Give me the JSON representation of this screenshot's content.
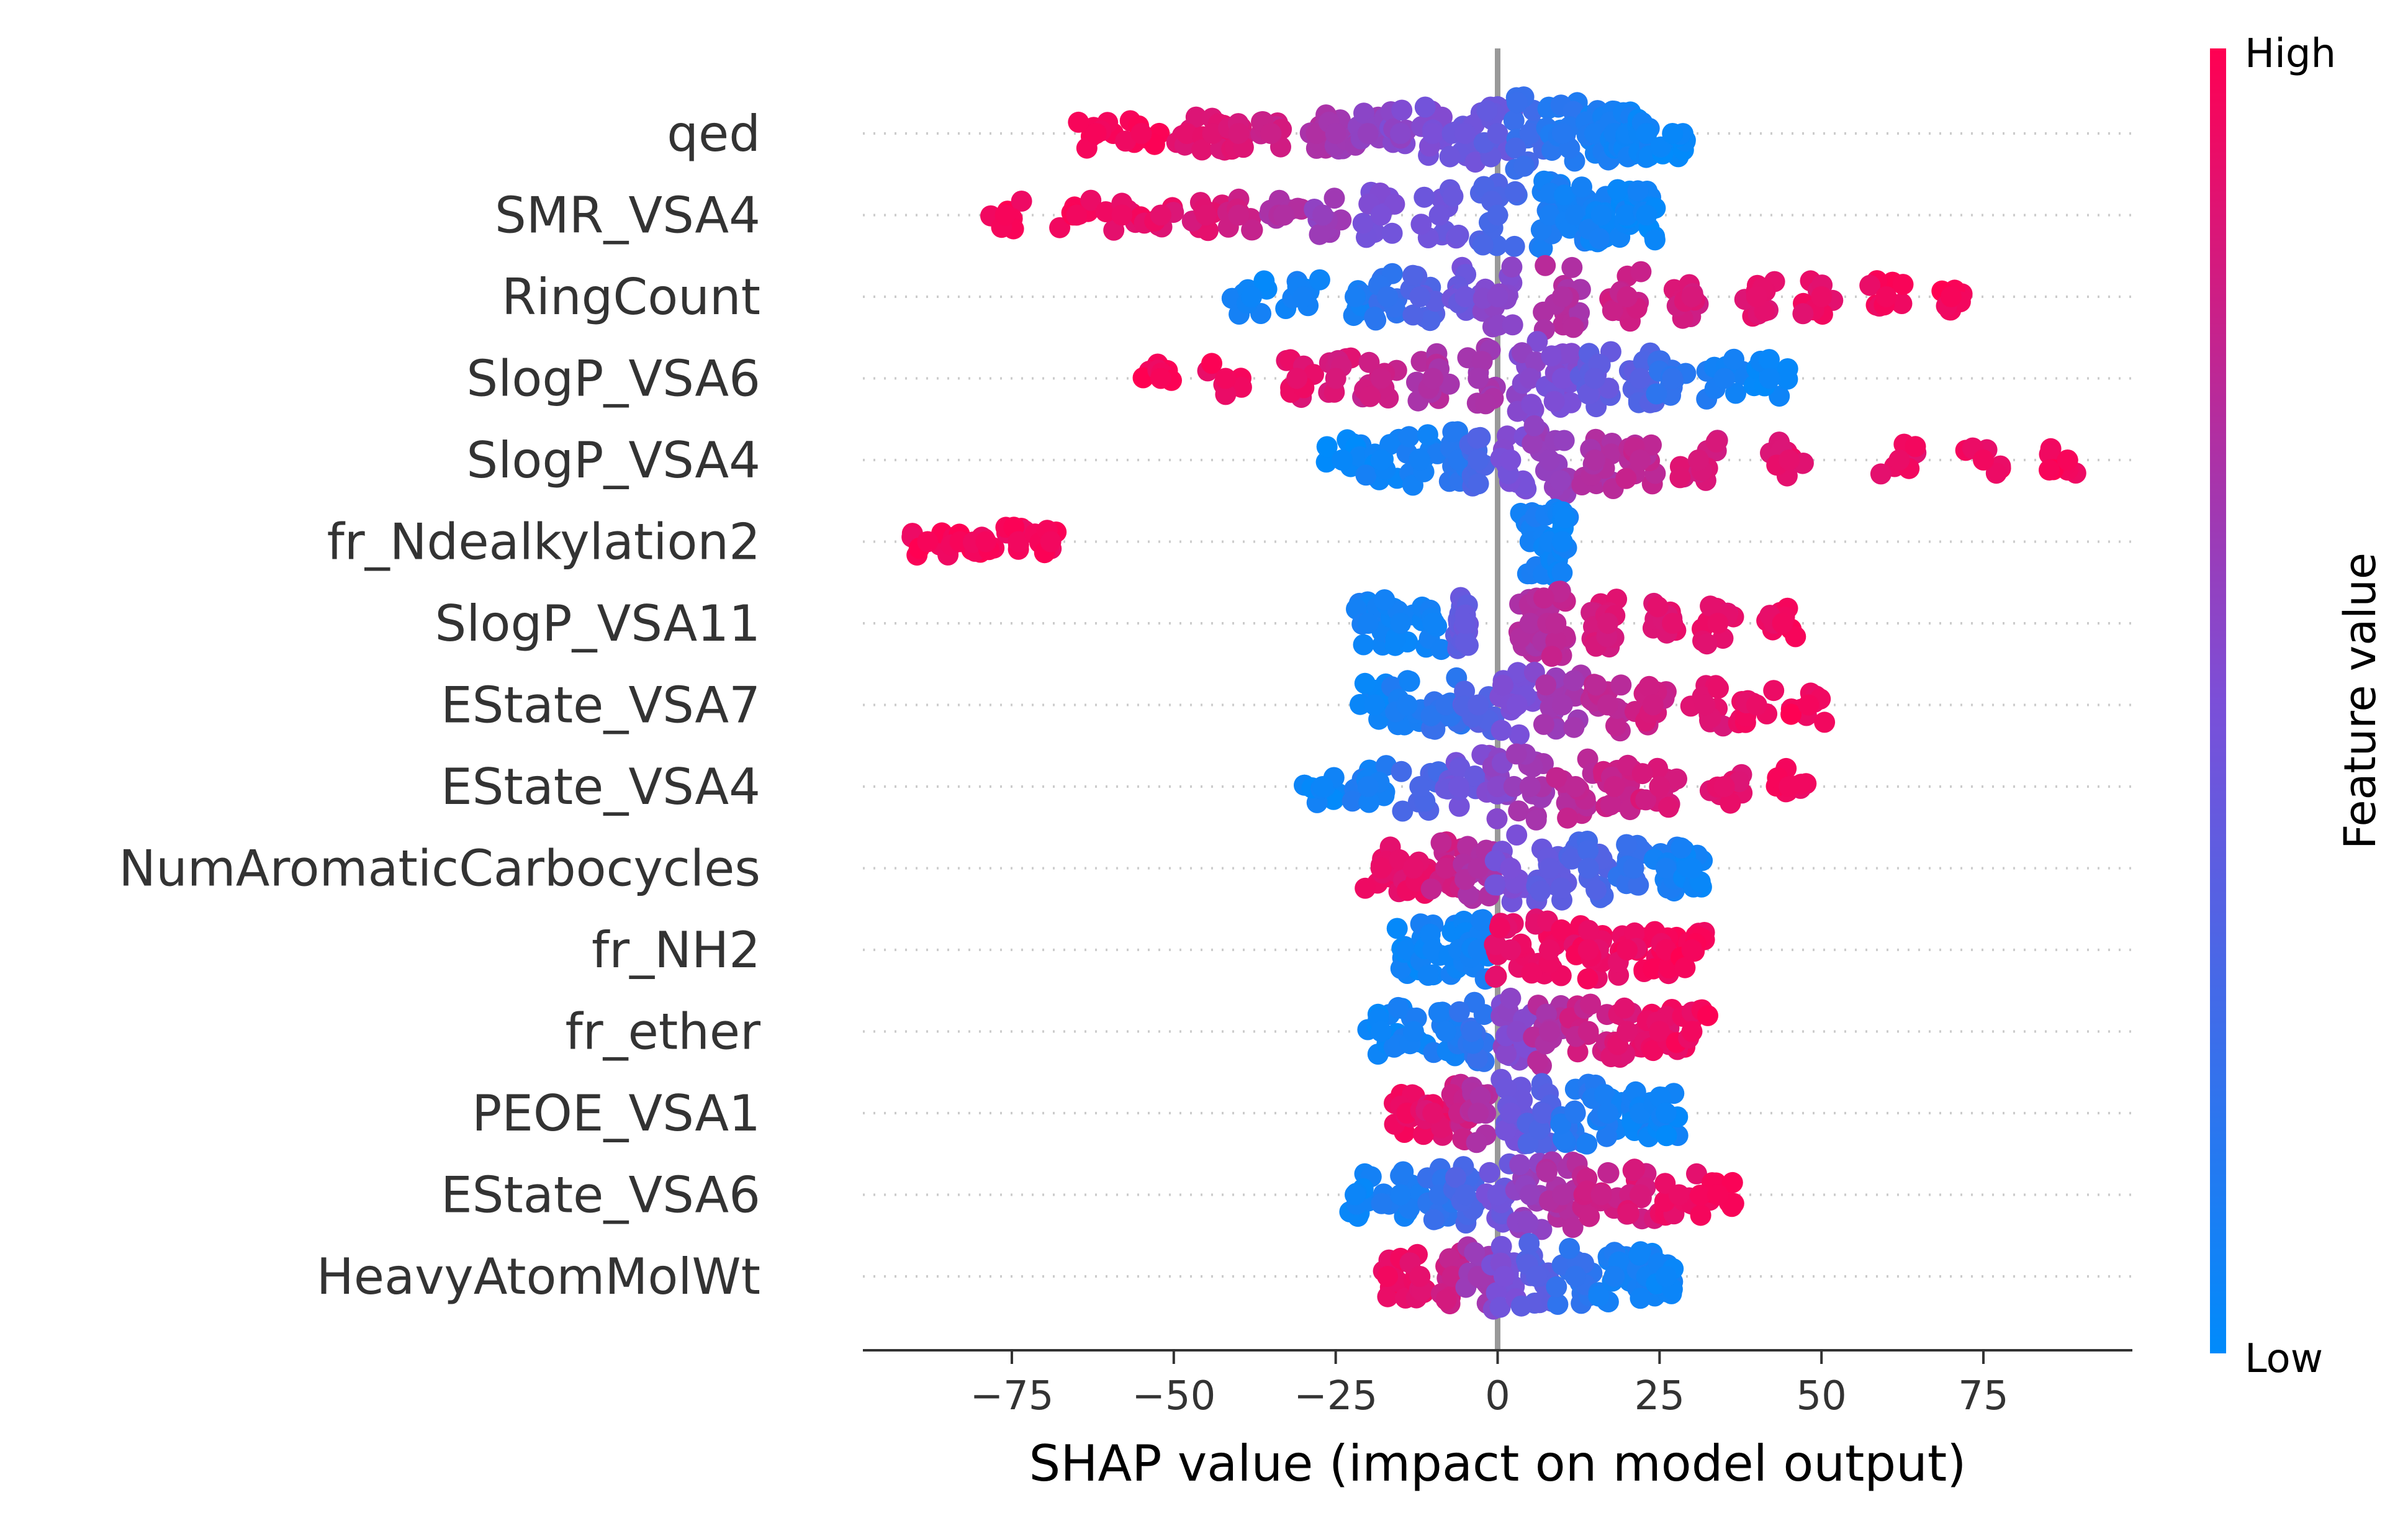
{
  "chart_data": {
    "type": "scatter",
    "subtype": "beeswarm",
    "xlabel": "SHAP value (impact on model output)",
    "ylabel": "",
    "xlim": [
      -98,
      98
    ],
    "xticks": [
      -75,
      -50,
      -25,
      0,
      25,
      50,
      75
    ],
    "xtick_labels": [
      "−75",
      "−50",
      "−25",
      "0",
      "25",
      "50",
      "75"
    ],
    "reference_line_x": 0,
    "colorbar": {
      "title": "Feature value",
      "high_label": "High",
      "low_label": "Low",
      "low_color": "#008bfb",
      "high_color": "#ff0052"
    },
    "features": [
      {
        "name": "qed",
        "points": [
          {
            "x": -62,
            "v": 0.97
          },
          {
            "x": -55,
            "v": 0.95
          },
          {
            "x": -48,
            "v": 0.9
          },
          {
            "x": -44,
            "v": 0.88
          },
          {
            "x": -40,
            "v": 0.85
          },
          {
            "x": -35,
            "v": 0.8
          },
          {
            "x": -28,
            "v": 0.7
          },
          {
            "x": -25,
            "v": 0.65
          },
          {
            "x": -20,
            "v": 0.6
          },
          {
            "x": -15,
            "v": 0.55
          },
          {
            "x": -10,
            "v": 0.5
          },
          {
            "x": -5,
            "v": 0.45
          },
          {
            "x": 0,
            "v": 0.4
          },
          {
            "x": 5,
            "v": 0.25
          },
          {
            "x": 10,
            "v": 0.15
          },
          {
            "x": 15,
            "v": 0.1
          },
          {
            "x": 18,
            "v": 0.08
          },
          {
            "x": 20,
            "v": 0.06
          },
          {
            "x": 23,
            "v": 0.05
          },
          {
            "x": 27,
            "v": 0.03
          }
        ]
      },
      {
        "name": "SMR_VSA4",
        "points": [
          {
            "x": -76,
            "v": 0.97
          },
          {
            "x": -65,
            "v": 0.95
          },
          {
            "x": -58,
            "v": 0.93
          },
          {
            "x": -52,
            "v": 0.9
          },
          {
            "x": -45,
            "v": 0.88
          },
          {
            "x": -40,
            "v": 0.8
          },
          {
            "x": -33,
            "v": 0.7
          },
          {
            "x": -27,
            "v": 0.6
          },
          {
            "x": -18,
            "v": 0.5
          },
          {
            "x": -9,
            "v": 0.45
          },
          {
            "x": 0,
            "v": 0.3
          },
          {
            "x": 8,
            "v": 0.1
          },
          {
            "x": 12,
            "v": 0.08
          },
          {
            "x": 16,
            "v": 0.06
          },
          {
            "x": 20,
            "v": 0.05
          },
          {
            "x": 23,
            "v": 0.04
          }
        ]
      },
      {
        "name": "RingCount",
        "points": [
          {
            "x": -38,
            "v": 0.05
          },
          {
            "x": -30,
            "v": 0.08
          },
          {
            "x": -22,
            "v": 0.1
          },
          {
            "x": -17,
            "v": 0.2
          },
          {
            "x": -12,
            "v": 0.35
          },
          {
            "x": -5,
            "v": 0.45
          },
          {
            "x": 0,
            "v": 0.55
          },
          {
            "x": 10,
            "v": 0.7
          },
          {
            "x": 20,
            "v": 0.8
          },
          {
            "x": 30,
            "v": 0.85
          },
          {
            "x": 40,
            "v": 0.9
          },
          {
            "x": 50,
            "v": 0.92
          },
          {
            "x": 60,
            "v": 0.95
          },
          {
            "x": 70,
            "v": 0.97
          }
        ]
      },
      {
        "name": "SlogP_VSA6",
        "points": [
          {
            "x": -52,
            "v": 0.97
          },
          {
            "x": -42,
            "v": 0.95
          },
          {
            "x": -31,
            "v": 0.9
          },
          {
            "x": -25,
            "v": 0.85
          },
          {
            "x": -18,
            "v": 0.8
          },
          {
            "x": -10,
            "v": 0.7
          },
          {
            "x": -3,
            "v": 0.65
          },
          {
            "x": 5,
            "v": 0.55
          },
          {
            "x": 10,
            "v": 0.5
          },
          {
            "x": 15,
            "v": 0.4
          },
          {
            "x": 22,
            "v": 0.35
          },
          {
            "x": 27,
            "v": 0.2
          },
          {
            "x": 35,
            "v": 0.1
          },
          {
            "x": 42,
            "v": 0.05
          }
        ]
      },
      {
        "name": "SlogP_VSA4",
        "points": [
          {
            "x": -24,
            "v": 0.03
          },
          {
            "x": -18,
            "v": 0.05
          },
          {
            "x": -12,
            "v": 0.08
          },
          {
            "x": -6,
            "v": 0.15
          },
          {
            "x": -3,
            "v": 0.3
          },
          {
            "x": 2,
            "v": 0.5
          },
          {
            "x": 8,
            "v": 0.6
          },
          {
            "x": 15,
            "v": 0.7
          },
          {
            "x": 22,
            "v": 0.75
          },
          {
            "x": 31,
            "v": 0.85
          },
          {
            "x": 45,
            "v": 0.9
          },
          {
            "x": 62,
            "v": 0.92
          },
          {
            "x": 75,
            "v": 0.95
          },
          {
            "x": 88,
            "v": 0.97
          }
        ]
      },
      {
        "name": "fr_Ndealkylation2",
        "points": [
          {
            "x": -88,
            "v": 0.97
          },
          {
            "x": -83,
            "v": 0.97
          },
          {
            "x": -79,
            "v": 0.96
          },
          {
            "x": -74,
            "v": 0.95
          },
          {
            "x": -69,
            "v": 0.95
          },
          {
            "x": 5,
            "v": 0.08
          },
          {
            "x": 8,
            "v": 0.06
          },
          {
            "x": 10,
            "v": 0.05
          }
        ]
      },
      {
        "name": "SlogP_VSA11",
        "points": [
          {
            "x": -20,
            "v": 0.08
          },
          {
            "x": -15,
            "v": 0.07
          },
          {
            "x": -10,
            "v": 0.06
          },
          {
            "x": -6,
            "v": 0.4
          },
          {
            "x": -5,
            "v": 0.42
          },
          {
            "x": 5,
            "v": 0.7
          },
          {
            "x": 9,
            "v": 0.75
          },
          {
            "x": 17,
            "v": 0.85
          },
          {
            "x": 27,
            "v": 0.9
          },
          {
            "x": 34,
            "v": 0.92
          },
          {
            "x": 44,
            "v": 0.95
          }
        ]
      },
      {
        "name": "EState_VSA7",
        "points": [
          {
            "x": -19,
            "v": 0.05
          },
          {
            "x": -14,
            "v": 0.1
          },
          {
            "x": -8,
            "v": 0.2
          },
          {
            "x": -3,
            "v": 0.35
          },
          {
            "x": 3,
            "v": 0.5
          },
          {
            "x": 10,
            "v": 0.65
          },
          {
            "x": 17,
            "v": 0.75
          },
          {
            "x": 24,
            "v": 0.82
          },
          {
            "x": 32,
            "v": 0.88
          },
          {
            "x": 40,
            "v": 0.92
          },
          {
            "x": 48,
            "v": 0.96
          }
        ]
      },
      {
        "name": "EState_VSA4",
        "points": [
          {
            "x": -27,
            "v": 0.05
          },
          {
            "x": -20,
            "v": 0.1
          },
          {
            "x": -12,
            "v": 0.3
          },
          {
            "x": -6,
            "v": 0.45
          },
          {
            "x": 0,
            "v": 0.55
          },
          {
            "x": 5,
            "v": 0.65
          },
          {
            "x": 12,
            "v": 0.75
          },
          {
            "x": 18,
            "v": 0.8
          },
          {
            "x": 25,
            "v": 0.85
          },
          {
            "x": 35,
            "v": 0.9
          },
          {
            "x": 45,
            "v": 0.95
          }
        ]
      },
      {
        "name": "NumAromaticCarbocycles",
        "points": [
          {
            "x": -18,
            "v": 0.92
          },
          {
            "x": -13,
            "v": 0.9
          },
          {
            "x": -8,
            "v": 0.8
          },
          {
            "x": -3,
            "v": 0.7
          },
          {
            "x": 2,
            "v": 0.5
          },
          {
            "x": 8,
            "v": 0.4
          },
          {
            "x": 14,
            "v": 0.3
          },
          {
            "x": 21,
            "v": 0.2
          },
          {
            "x": 26,
            "v": 0.1
          },
          {
            "x": 30,
            "v": 0.05
          }
        ]
      },
      {
        "name": "fr_NH2",
        "points": [
          {
            "x": -14,
            "v": 0.05
          },
          {
            "x": -10,
            "v": 0.06
          },
          {
            "x": -6,
            "v": 0.07
          },
          {
            "x": -3,
            "v": 0.08
          },
          {
            "x": 2,
            "v": 0.9
          },
          {
            "x": 8,
            "v": 0.92
          },
          {
            "x": 14,
            "v": 0.93
          },
          {
            "x": 20,
            "v": 0.94
          },
          {
            "x": 26,
            "v": 0.95
          },
          {
            "x": 30,
            "v": 0.96
          }
        ]
      },
      {
        "name": "fr_ether",
        "points": [
          {
            "x": -18,
            "v": 0.05
          },
          {
            "x": -13,
            "v": 0.08
          },
          {
            "x": -8,
            "v": 0.1
          },
          {
            "x": -4,
            "v": 0.2
          },
          {
            "x": 3,
            "v": 0.55
          },
          {
            "x": 8,
            "v": 0.7
          },
          {
            "x": 14,
            "v": 0.8
          },
          {
            "x": 20,
            "v": 0.88
          },
          {
            "x": 25,
            "v": 0.92
          },
          {
            "x": 30,
            "v": 0.95
          }
        ]
      },
      {
        "name": "PEOE_VSA1",
        "points": [
          {
            "x": -14,
            "v": 0.95
          },
          {
            "x": -10,
            "v": 0.9
          },
          {
            "x": -6,
            "v": 0.8
          },
          {
            "x": -3,
            "v": 0.7
          },
          {
            "x": 2,
            "v": 0.45
          },
          {
            "x": 7,
            "v": 0.35
          },
          {
            "x": 12,
            "v": 0.15
          },
          {
            "x": 17,
            "v": 0.1
          },
          {
            "x": 22,
            "v": 0.07
          },
          {
            "x": 26,
            "v": 0.05
          }
        ]
      },
      {
        "name": "EState_VSA6",
        "points": [
          {
            "x": -22,
            "v": 0.05
          },
          {
            "x": -15,
            "v": 0.1
          },
          {
            "x": -9,
            "v": 0.2
          },
          {
            "x": -5,
            "v": 0.3
          },
          {
            "x": 0,
            "v": 0.45
          },
          {
            "x": 5,
            "v": 0.6
          },
          {
            "x": 10,
            "v": 0.7
          },
          {
            "x": 16,
            "v": 0.8
          },
          {
            "x": 22,
            "v": 0.85
          },
          {
            "x": 28,
            "v": 0.92
          },
          {
            "x": 34,
            "v": 0.97
          }
        ]
      },
      {
        "name": "HeavyAtomMolWt",
        "points": [
          {
            "x": -17,
            "v": 0.95
          },
          {
            "x": -12,
            "v": 0.9
          },
          {
            "x": -7,
            "v": 0.8
          },
          {
            "x": -3,
            "v": 0.65
          },
          {
            "x": 1,
            "v": 0.5
          },
          {
            "x": 6,
            "v": 0.35
          },
          {
            "x": 12,
            "v": 0.2
          },
          {
            "x": 18,
            "v": 0.1
          },
          {
            "x": 23,
            "v": 0.07
          },
          {
            "x": 26,
            "v": 0.05
          }
        ]
      }
    ]
  }
}
